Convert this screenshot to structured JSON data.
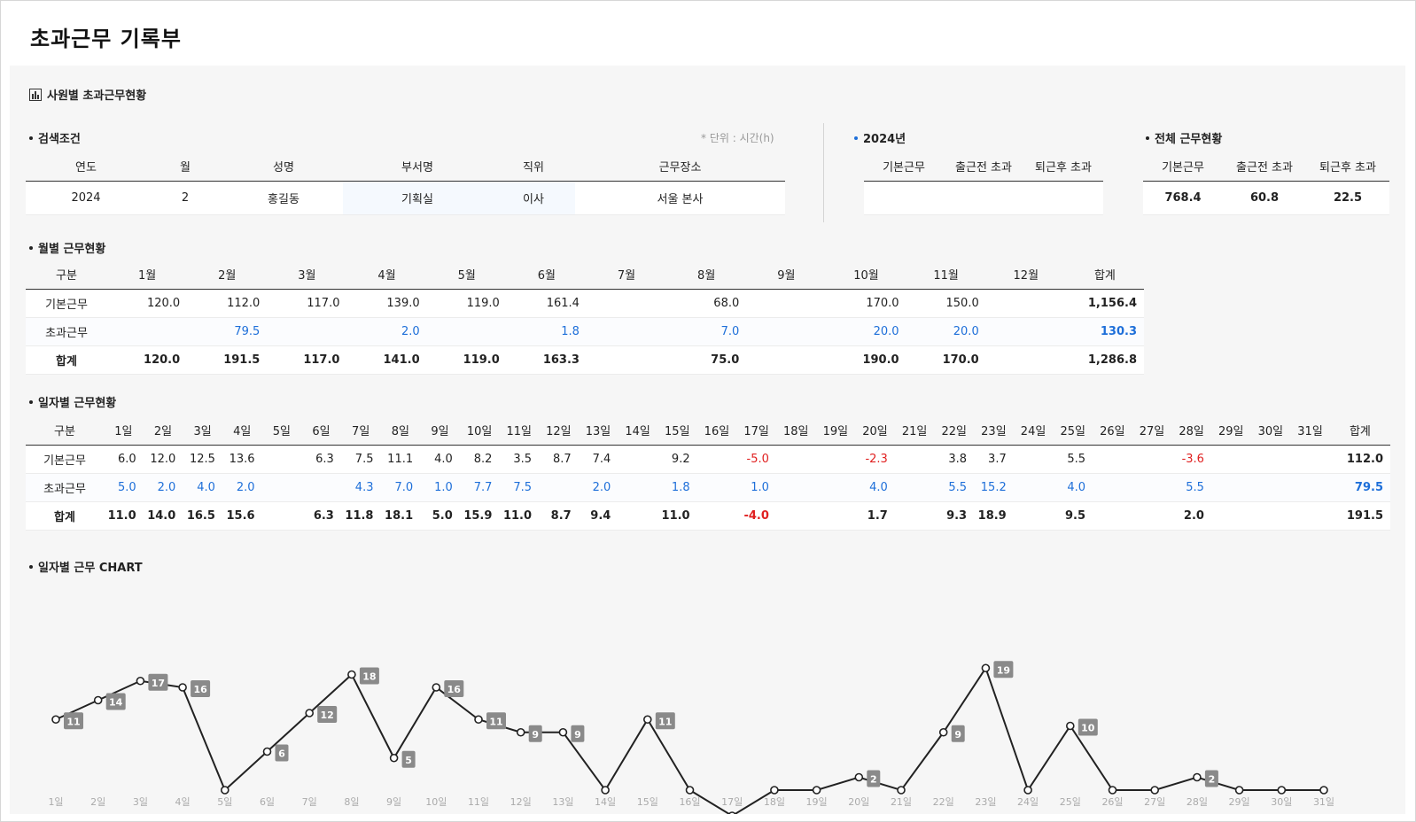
{
  "page_title": "초과근무 기록부",
  "section_title": "사원별 초과근무현황",
  "section_icon": "bar-chart-icon",
  "search": {
    "title": "검색조건",
    "unit_note": "* 단위 : 시간(h)",
    "headers": [
      "연도",
      "월",
      "성명",
      "부서명",
      "직위",
      "근무장소"
    ],
    "values": [
      "2024",
      "2",
      "홍길동",
      "기획실",
      "이사",
      "서울 본사"
    ]
  },
  "year_box": {
    "title": "2024년",
    "headers": [
      "기본근무",
      "출근전 초과",
      "퇴근후 초과"
    ],
    "values": [
      "",
      "",
      ""
    ]
  },
  "total_box": {
    "title": "전체 근무현황",
    "headers": [
      "기본근무",
      "출근전 초과",
      "퇴근후 초과"
    ],
    "values": [
      "768.4",
      "60.8",
      "22.5"
    ]
  },
  "monthly": {
    "title": "월별 근무현황",
    "headers": [
      "구분",
      "1월",
      "2월",
      "3월",
      "4월",
      "5월",
      "6월",
      "7월",
      "8월",
      "9월",
      "10월",
      "11월",
      "12월",
      "합계"
    ],
    "rows": [
      {
        "label": "기본근무",
        "cells": [
          "120.0",
          "112.0",
          "117.0",
          "139.0",
          "119.0",
          "161.4",
          "",
          "68.0",
          "",
          "170.0",
          "150.0",
          "",
          "1,156.4"
        ]
      },
      {
        "label": "초과근무",
        "cells": [
          "",
          "79.5",
          "",
          "2.0",
          "",
          "1.8",
          "",
          "7.0",
          "",
          "20.0",
          "20.0",
          "",
          "130.3"
        ]
      },
      {
        "label": "합계",
        "cells": [
          "120.0",
          "191.5",
          "117.0",
          "141.0",
          "119.0",
          "163.3",
          "",
          "75.0",
          "",
          "190.0",
          "170.0",
          "",
          "1,286.8"
        ]
      }
    ]
  },
  "daily": {
    "title": "일자별 근무현황",
    "headers": [
      "구분",
      "1일",
      "2일",
      "3일",
      "4일",
      "5일",
      "6일",
      "7일",
      "8일",
      "9일",
      "10일",
      "11일",
      "12일",
      "13일",
      "14일",
      "15일",
      "16일",
      "17일",
      "18일",
      "19일",
      "20일",
      "21일",
      "22일",
      "23일",
      "24일",
      "25일",
      "26일",
      "27일",
      "28일",
      "29일",
      "30일",
      "31일",
      "합계"
    ],
    "rows": [
      {
        "label": "기본근무",
        "cells": [
          "6.0",
          "12.0",
          "12.5",
          "13.6",
          "",
          "6.3",
          "7.5",
          "11.1",
          "4.0",
          "8.2",
          "3.5",
          "8.7",
          "7.4",
          "",
          "9.2",
          "",
          "-5.0",
          "",
          "",
          "-2.3",
          "",
          "3.8",
          "3.7",
          "",
          "5.5",
          "",
          "",
          "-3.6",
          "",
          "",
          "",
          "112.0"
        ]
      },
      {
        "label": "초과근무",
        "cells": [
          "5.0",
          "2.0",
          "4.0",
          "2.0",
          "",
          "",
          "4.3",
          "7.0",
          "1.0",
          "7.7",
          "7.5",
          "",
          "2.0",
          "",
          "1.8",
          "",
          "1.0",
          "",
          "",
          "4.0",
          "",
          "5.5",
          "15.2",
          "",
          "4.0",
          "",
          "",
          "5.5",
          "",
          "",
          "",
          "79.5"
        ]
      },
      {
        "label": "합계",
        "cells": [
          "11.0",
          "14.0",
          "16.5",
          "15.6",
          "",
          "6.3",
          "11.8",
          "18.1",
          "5.0",
          "15.9",
          "11.0",
          "8.7",
          "9.4",
          "",
          "11.0",
          "",
          "-4.0",
          "",
          "",
          "1.7",
          "",
          "9.3",
          "18.9",
          "",
          "9.5",
          "",
          "",
          "2.0",
          "",
          "",
          "",
          "191.5"
        ]
      }
    ]
  },
  "chart_section_title": "일자별 근무 CHART",
  "chart_data": {
    "type": "line",
    "title": "일자별 근무 CHART",
    "categories": [
      "1일",
      "2일",
      "3일",
      "4일",
      "5일",
      "6일",
      "7일",
      "8일",
      "9일",
      "10일",
      "11일",
      "12일",
      "13일",
      "14일",
      "15일",
      "16일",
      "17일",
      "18일",
      "19일",
      "20일",
      "21일",
      "22일",
      "23일",
      "24일",
      "25일",
      "26일",
      "27일",
      "28일",
      "29일",
      "30일",
      "31일"
    ],
    "values": [
      11,
      14,
      17,
      16,
      0,
      6,
      12,
      18,
      5,
      16,
      11,
      9,
      9,
      0,
      11,
      0,
      -4,
      0,
      0,
      2,
      0,
      9,
      19,
      0,
      10,
      0,
      0,
      2,
      0,
      0,
      0
    ],
    "data_labels": [
      "11",
      "14",
      "17",
      "16",
      "",
      "6",
      "12",
      "18",
      "5",
      "16",
      "11",
      "9",
      "9",
      "",
      "11",
      "",
      "",
      "",
      "",
      "2",
      "",
      "9",
      "19",
      "",
      "10",
      "",
      "",
      "2",
      "",
      "",
      ""
    ],
    "ylim": [
      -4,
      19
    ],
    "grid": false,
    "colors": {
      "line": "#222222",
      "label_bg": "#8a8a8a",
      "tick": "#aaaaaa",
      "accent_blue": "#1e6fd9",
      "negative_red": "#e02020"
    }
  }
}
